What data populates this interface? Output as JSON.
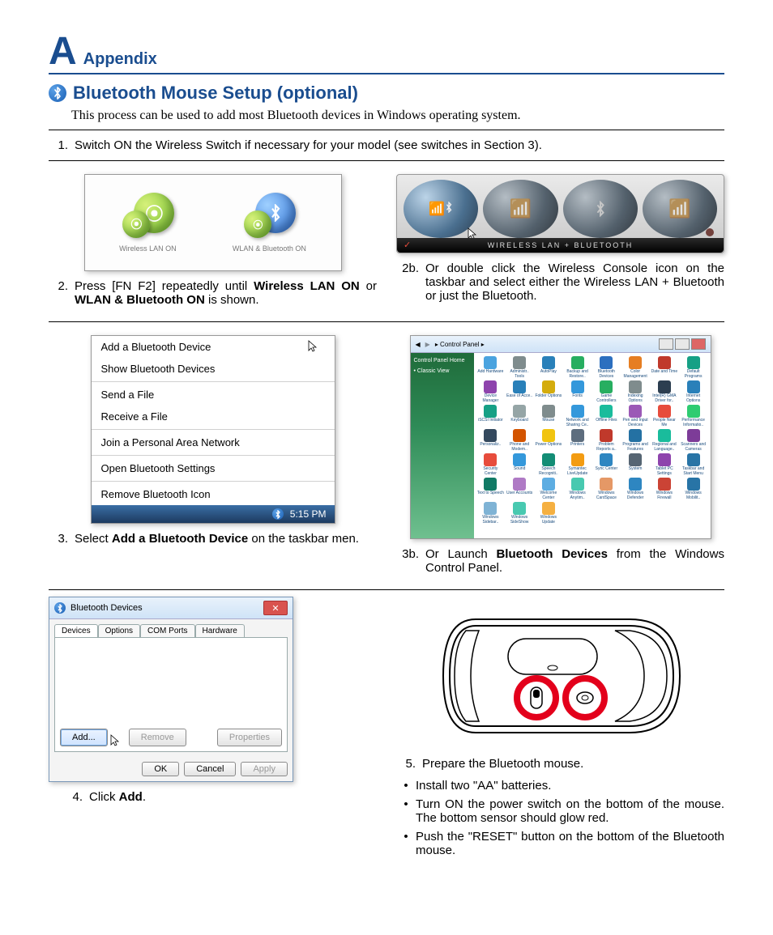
{
  "header": {
    "letter": "A",
    "label": "Appendix"
  },
  "section": {
    "title": "Bluetooth Mouse Setup (optional)",
    "intro": "This process can be used to add most Bluetooth devices in Windows operating system."
  },
  "step1": {
    "num": "1.",
    "text": "Switch ON the Wireless Switch if necessary for your model (see switches in Section 3)."
  },
  "wifi_icons": {
    "left_label": "Wireless LAN ON",
    "right_label": "WLAN & Bluetooth ON"
  },
  "console_label": "WIRELESS LAN + BLUETOOTH",
  "step2": {
    "num": "2.",
    "text_pre": "Press [FN F2] repeatedly until ",
    "b1": "Wireless LAN ON",
    "mid": " or ",
    "b2": "WLAN & Bluetooth ON",
    "text_post": " is shown."
  },
  "step2b": {
    "num": "2b.",
    "text": "Or double click the Wireless Console icon on the taskbar and select either the Wireless LAN + Bluetooth or just the Bluetooth."
  },
  "menu": {
    "items": [
      "Add a Bluetooth Device",
      "Show Bluetooth Devices",
      "Send a File",
      "Receive a File",
      "Join a Personal Area Network",
      "Open Bluetooth Settings",
      "Remove Bluetooth Icon"
    ],
    "clock": "5:15 PM"
  },
  "step3": {
    "num": "3.",
    "pre": "Select ",
    "b": "Add a Bluetooth Device",
    "post": " on the taskbar men."
  },
  "step3b": {
    "num": "3b.",
    "pre": "Or Launch ",
    "b": "Bluetooth Devices",
    "post": " from the Windows Control Panel."
  },
  "cp": {
    "path": "▸ Control Panel ▸",
    "side1": "Control Panel Home",
    "side2": "• Classic View",
    "labels": [
      "Add Hardware",
      "Administr.. Tools",
      "AutoPlay",
      "Backup and Restore..",
      "Bluetooth Devices",
      "Color Management",
      "Date and Time",
      "Default Programs",
      "Device Manager",
      "Ease of Acce..",
      "Folder Options",
      "Fonts",
      "Game Controllers",
      "Indexing Options",
      "Intel(R) GMA Driver for..",
      "Internet Options",
      "iSCSI Initiator",
      "Keyboard",
      "Mouse",
      "Network and Sharing Ce..",
      "Offline Files",
      "Pen and Input Devices",
      "People Near Me",
      "Performance Informatio..",
      "Personaliz..",
      "Phone and Modem..",
      "Power Options",
      "Printers",
      "Problem Reports a..",
      "Programs and Features",
      "Regional and Language..",
      "Scanners and Cameras",
      "Security Center",
      "Sound",
      "Speech Recogniti..",
      "Symantec LiveUpdate",
      "Sync Center",
      "System",
      "Tablet PC Settings",
      "Taskbar and Start Menu",
      "Text to Speech",
      "User Accounts",
      "Welcome Center",
      "Windows Anytim..",
      "Windows CardSpace",
      "Windows Defender",
      "Windows Firewall",
      "Windows Mobilit..",
      "Windows Sidebar..",
      "Windows SideShow",
      "Windows Update"
    ],
    "colors": [
      "#4aa3df",
      "#7f8c8d",
      "#2980b9",
      "#27ae60",
      "#2c6fbf",
      "#e67e22",
      "#c0392b",
      "#16a085",
      "#8e44ad",
      "#2980b9",
      "#d4ac0d",
      "#3498db",
      "#27ae60",
      "#7f8c8d",
      "#2c3e50",
      "#2980b9",
      "#16a085",
      "#95a5a6",
      "#7f8c8d",
      "#3498db",
      "#1abc9c",
      "#9b59b6",
      "#e74c3c",
      "#2ecc71",
      "#34495e",
      "#d35400",
      "#f1c40f",
      "#5d6d7e",
      "#c0392b",
      "#2471a3",
      "#1abc9c",
      "#7d3c98",
      "#e74c3c",
      "#3498db",
      "#138d75",
      "#f39c12",
      "#2e86c1",
      "#566573",
      "#8e44ad",
      "#2874a6",
      "#117a65",
      "#af7ac5",
      "#5dade2",
      "#48c9b0",
      "#e59866",
      "#2e86c1",
      "#cb4335",
      "#2874a6",
      "#7fb3d5",
      "#48c9b0",
      "#f5b041"
    ]
  },
  "dlg": {
    "title": "Bluetooth Devices",
    "tabs": [
      "Devices",
      "Options",
      "COM Ports",
      "Hardware"
    ],
    "btn_add": "Add...",
    "btn_remove": "Remove",
    "btn_props": "Properties",
    "btn_ok": "OK",
    "btn_cancel": "Cancel",
    "btn_apply": "Apply"
  },
  "step4": {
    "num": "4.",
    "pre": "Click ",
    "b": "Add",
    "post": "."
  },
  "step5": {
    "num": "5.",
    "text": "Prepare the Bluetooth mouse."
  },
  "bul1": "Install two \"AA\" batteries.",
  "bul2": "Turn ON the power switch on the bottom of the mouse. The bottom sensor should glow red.",
  "bul3": "Push the \"RESET\" button on the bottom of the Bluetooth mouse.",
  "accent_red": "#e3001b"
}
